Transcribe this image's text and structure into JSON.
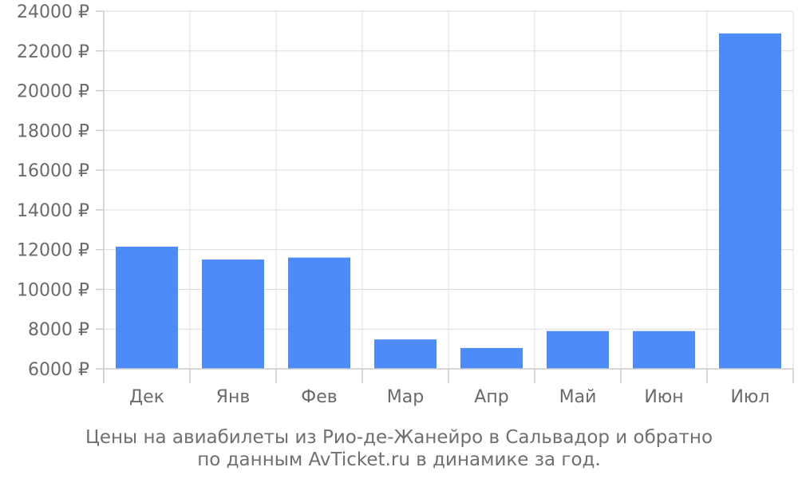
{
  "chart_data": {
    "type": "bar",
    "categories": [
      "Дек",
      "Янв",
      "Фев",
      "Мар",
      "Апр",
      "Май",
      "Июн",
      "Июл"
    ],
    "values": [
      12150,
      11500,
      11600,
      7480,
      7050,
      7900,
      7900,
      22880
    ],
    "ylim": [
      6000,
      24000
    ],
    "yticks": [
      {
        "value": 6000,
        "label": "6000 ₽"
      },
      {
        "value": 8000,
        "label": "8000 ₽"
      },
      {
        "value": 10000,
        "label": "10000 ₽"
      },
      {
        "value": 12000,
        "label": "12000 ₽"
      },
      {
        "value": 14000,
        "label": "14000 ₽"
      },
      {
        "value": 16000,
        "label": "16000 ₽"
      },
      {
        "value": 18000,
        "label": "18000 ₽"
      },
      {
        "value": 20000,
        "label": "20000 ₽"
      },
      {
        "value": 22000,
        "label": "22000 ₽"
      },
      {
        "value": 24000,
        "label": "24000 ₽"
      }
    ],
    "grid": true,
    "bar_color": "#4d8afa",
    "grid_color": "#dddddd",
    "axis_color": "#cccccc",
    "title": "",
    "xlabel": "",
    "ylabel": ""
  },
  "caption": {
    "line1": "Цены на авиабилеты из Рио-де-Жанейро в Сальвадор и обратно",
    "line2": "по данным AvTicket.ru в динамике за год."
  }
}
